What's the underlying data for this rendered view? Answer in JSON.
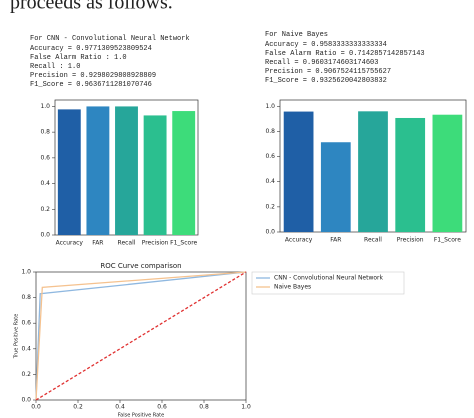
{
  "text": {
    "fragment": "proceeds as follows."
  },
  "chart_data": [
    {
      "type": "bar",
      "title": "For CNN - Convolutional Neural Network",
      "metrics": [
        "Accuracy = 0.9771309523809524",
        "False Alarm Ratio : 1.0",
        "Recall : 1.0",
        "Precision = 0.9298029808928809",
        "F1_Score = 0.9636711281070746"
      ],
      "categories": [
        "Accuracy",
        "FAR",
        "Recall",
        "Precision",
        "F1_Score"
      ],
      "values": [
        0.977,
        1.0,
        1.0,
        0.93,
        0.964
      ],
      "colors": [
        "#1f5fa6",
        "#2e86c1",
        "#26a69a",
        "#2bbf8f",
        "#3ddc7a"
      ],
      "ylim": [
        0,
        1.05
      ],
      "yticks": [
        {
          "value": 0,
          "label": "0.0"
        },
        0.2,
        0.4,
        0.6,
        0.8,
        {
          "value": 1,
          "label": "1.0"
        }
      ]
    },
    {
      "type": "bar",
      "title": "For Naive Bayes",
      "metrics": [
        "Accuracy = 0.9583333333333334",
        "False Alarm Ratio = 0.7142857142857143",
        "Recall = 0.9603174603174603",
        "Precision = 0.9067524115755627",
        "F1_Score = 0.9325620042803832"
      ],
      "categories": [
        "Accuracy",
        "FAR",
        "Recall",
        "Precision",
        "F1_Score"
      ],
      "values": [
        0.958,
        0.714,
        0.96,
        0.907,
        0.933
      ],
      "colors": [
        "#1f5fa6",
        "#2e86c1",
        "#26a69a",
        "#2bbf8f",
        "#3ddc7a"
      ],
      "ylim": [
        0,
        1.05
      ],
      "yticks": [
        {
          "value": 0,
          "label": "0.0"
        },
        0.2,
        0.4,
        0.6,
        0.8,
        {
          "value": 1,
          "label": "1.0"
        }
      ]
    },
    {
      "type": "line",
      "title": "ROC Curve comparison",
      "x_label": "False Positive Rate",
      "y_label": "True Positive Rate",
      "series": [
        {
          "name": "CNN - Convolutional Neural Network",
          "color": "#8fb8e0",
          "x": [
            0,
            0.02,
            1
          ],
          "values": [
            0,
            0.83,
            1
          ]
        },
        {
          "name": "Naive Bayes",
          "color": "#f5c28f",
          "x": [
            0,
            0.03,
            1
          ],
          "values": [
            0,
            0.88,
            1
          ]
        },
        {
          "color": "#e03030",
          "dashed": true,
          "x": [
            0,
            1
          ],
          "values": [
            0,
            1
          ]
        }
      ],
      "xlim": [
        0,
        1
      ],
      "ylim": [
        0,
        1
      ],
      "xticks": [
        {
          "value": 0,
          "label": "0.0"
        },
        0.2,
        0.4,
        0.6,
        0.8,
        {
          "value": 1,
          "label": "1.0"
        }
      ],
      "yticks": [
        {
          "value": 0,
          "label": "0.0"
        },
        0.2,
        0.4,
        0.6,
        0.8,
        {
          "value": 1,
          "label": "1.0"
        }
      ]
    }
  ]
}
